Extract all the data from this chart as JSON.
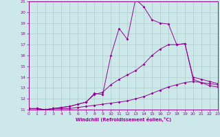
{
  "xlabel": "Windchill (Refroidissement éolien,°C)",
  "xlim": [
    0,
    23
  ],
  "ylim": [
    11,
    21
  ],
  "yticks": [
    11,
    12,
    13,
    14,
    15,
    16,
    17,
    18,
    19,
    20,
    21
  ],
  "xticks": [
    0,
    1,
    2,
    3,
    4,
    5,
    6,
    7,
    8,
    9,
    10,
    11,
    12,
    13,
    14,
    15,
    16,
    17,
    18,
    19,
    20,
    21,
    22,
    23
  ],
  "bg_color": "#cce8e8",
  "grid_color": "#aacccc",
  "line_color": "#990099",
  "line1_x": [
    0,
    1,
    2,
    3,
    4,
    5,
    6,
    7,
    8,
    9,
    10,
    11,
    12,
    13,
    14,
    15,
    16,
    17,
    18,
    19,
    20,
    21,
    22,
    23
  ],
  "line1_y": [
    11.1,
    11.1,
    11.0,
    11.1,
    11.1,
    11.1,
    11.2,
    11.3,
    11.4,
    11.5,
    11.6,
    11.7,
    11.8,
    12.0,
    12.2,
    12.5,
    12.8,
    13.1,
    13.3,
    13.5,
    13.6,
    13.5,
    13.4,
    13.3
  ],
  "line2_x": [
    0,
    1,
    2,
    3,
    4,
    5,
    6,
    7,
    8,
    9,
    10,
    11,
    12,
    13,
    14,
    15,
    16,
    17,
    18,
    19,
    20,
    21,
    22,
    23
  ],
  "line2_y": [
    11.1,
    11.1,
    11.0,
    11.1,
    11.2,
    11.3,
    11.5,
    11.7,
    12.5,
    12.4,
    16.0,
    18.5,
    17.5,
    21.2,
    20.5,
    19.3,
    19.0,
    18.9,
    17.0,
    17.1,
    13.8,
    13.5,
    13.2,
    13.1
  ],
  "line3_x": [
    0,
    1,
    2,
    3,
    4,
    5,
    6,
    7,
    8,
    9,
    10,
    11,
    12,
    13,
    14,
    15,
    16,
    17,
    18,
    19,
    20,
    21,
    22,
    23
  ],
  "line3_y": [
    11.1,
    11.1,
    11.0,
    11.1,
    11.2,
    11.3,
    11.5,
    11.7,
    12.4,
    12.6,
    13.3,
    13.8,
    14.2,
    14.6,
    15.2,
    16.0,
    16.6,
    17.0,
    17.0,
    17.1,
    14.0,
    13.8,
    13.6,
    13.4
  ],
  "markersize": 2.0
}
